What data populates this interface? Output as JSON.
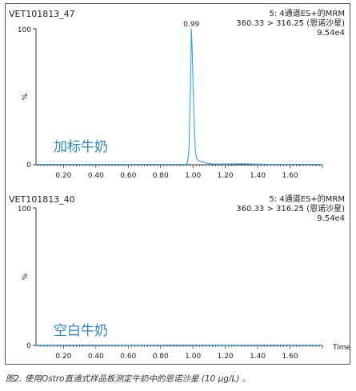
{
  "caption": "图2. 使用Ostro直通式样品板测定牛奶中的恩诺沙星 (10 µg/L) 。",
  "chart_data": [
    {
      "type": "line",
      "sample_id": "VET101813_47",
      "header_lines": [
        "5: 4通道ES+的MRM",
        "360.33 > 316.25 (恩诺沙星)",
        "9.54e4"
      ],
      "annotation": "加标牛奶",
      "annotation_color": "#2e86b8",
      "line_color": "#3a9ad9",
      "peak_label": "0.99",
      "ylabel": "%",
      "ytick_labels": [
        "0",
        "100"
      ],
      "ylim": [
        0,
        100
      ],
      "xlim": [
        0.03,
        1.8
      ],
      "xtick_labels": [
        "0.20",
        "0.40",
        "0.60",
        "0.80",
        "1.00",
        "1.20",
        "1.40",
        "1.60"
      ],
      "xticks": [
        0.2,
        0.4,
        0.6,
        0.8,
        1.0,
        1.2,
        1.4,
        1.6
      ],
      "series": [
        {
          "x": [
            0.03,
            0.95,
            0.965,
            0.975,
            0.985,
            0.99,
            0.995,
            1.005,
            1.015,
            1.025,
            1.035,
            1.05,
            1.07,
            1.09,
            1.12,
            1.2,
            1.3,
            1.4,
            1.5,
            1.6,
            1.7,
            1.8
          ],
          "y": [
            0.3,
            0.3,
            0.5,
            10,
            60,
            100,
            85,
            40,
            10,
            4,
            3,
            2.5,
            1.5,
            1,
            0.6,
            0.5,
            0.7,
            0.4,
            0.3,
            0.3,
            0.3,
            0.3
          ]
        }
      ]
    },
    {
      "type": "line",
      "sample_id": "VET101813_40",
      "header_lines": [
        "5: 4通道ES+的MRM",
        "360.33 > 316.25 (恩诺沙星)",
        "9.54e4"
      ],
      "annotation": "空白牛奶",
      "annotation_color": "#2e86b8",
      "line_color": "#3a9ad9",
      "ylabel": "%",
      "ytick_labels": [
        "0",
        "100"
      ],
      "ylim": [
        0,
        100
      ],
      "xlim": [
        0.03,
        1.8
      ],
      "xlabel": "Time",
      "xtick_labels": [
        "0.20",
        "0.40",
        "0.60",
        "0.80",
        "1.00",
        "1.20",
        "1.40",
        "1.60"
      ],
      "xticks": [
        0.2,
        0.4,
        0.6,
        0.8,
        1.0,
        1.2,
        1.4,
        1.6
      ],
      "series": [
        {
          "x": [
            0.03,
            0.3,
            0.6,
            0.9,
            1.2,
            1.5,
            1.8
          ],
          "y": [
            0.2,
            0.3,
            0.2,
            0.3,
            0.2,
            0.3,
            0.2
          ]
        }
      ]
    }
  ]
}
